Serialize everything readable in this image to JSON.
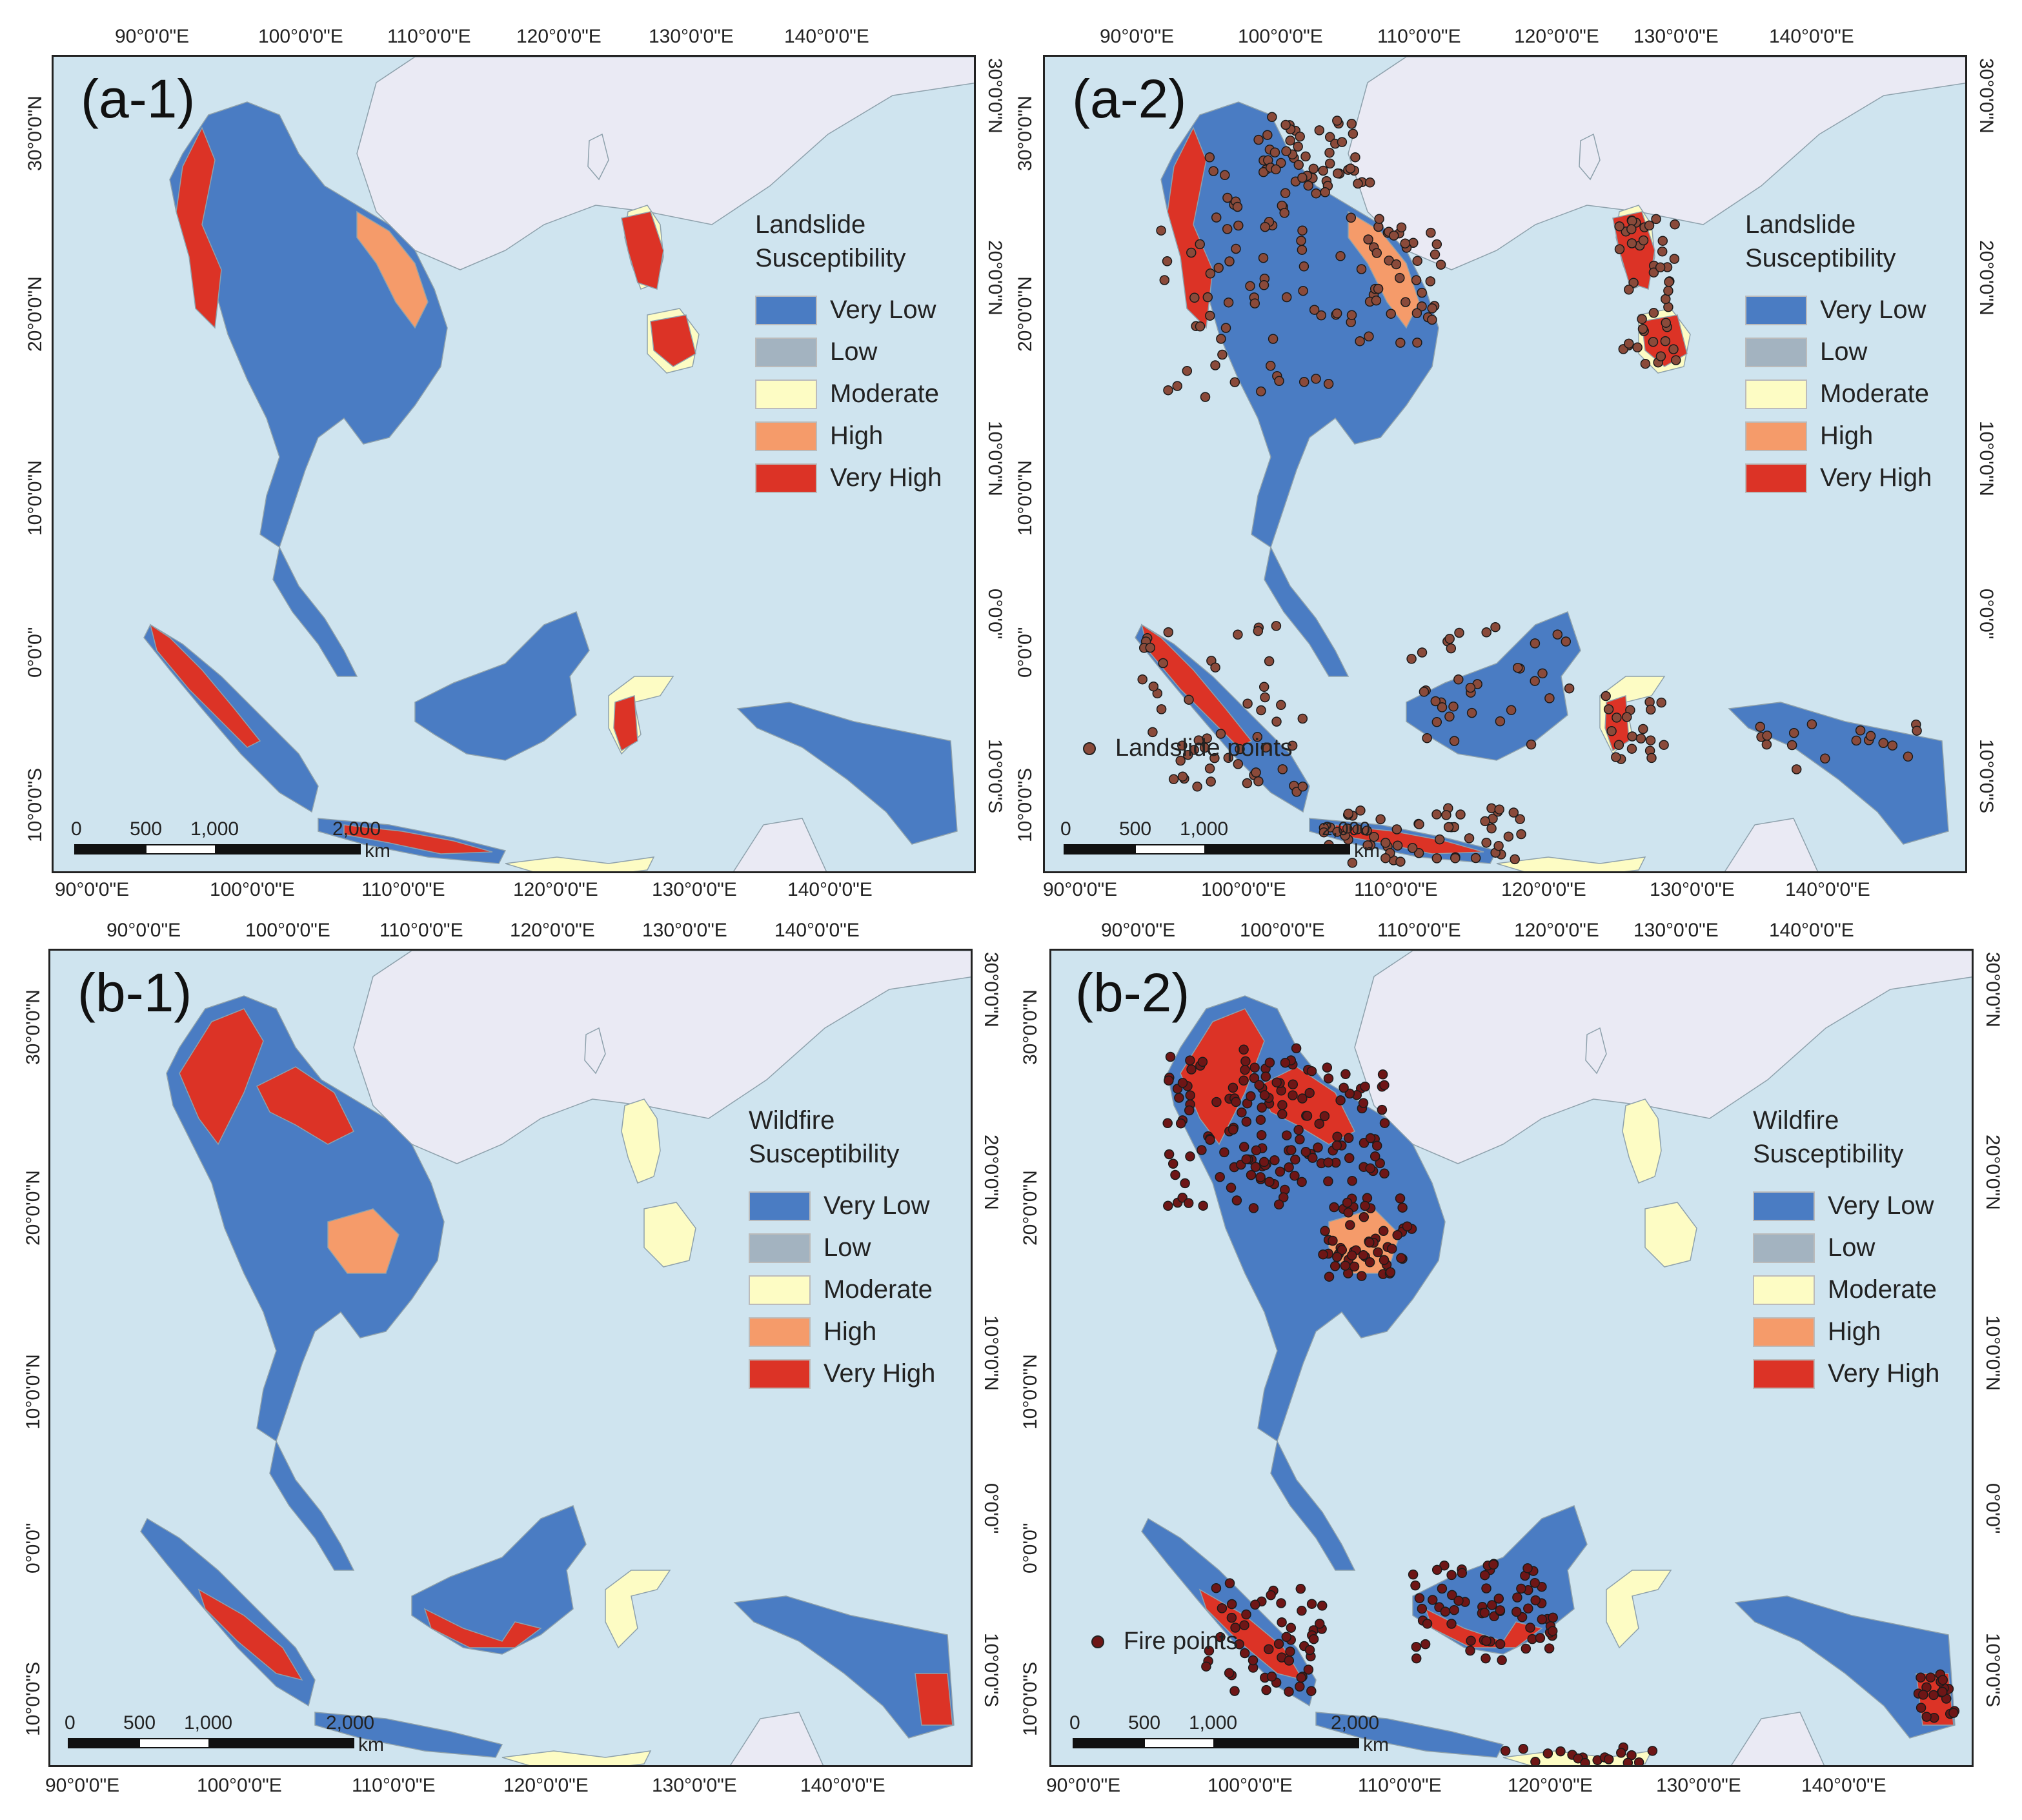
{
  "colors": {
    "sea": "#cfe4ef",
    "mainland": "#eaeaf4",
    "very_low": "#4a7cc3",
    "low": "#a3b3c0",
    "moderate": "#fdfcc4",
    "high": "#f59b6a",
    "very_high": "#dc3326",
    "landslide_point": "#8a4a3a",
    "fire_point": "#6e1616"
  },
  "panels": [
    {
      "id": "a-1",
      "label": "(a-1)",
      "legend": {
        "title_line1": "Landslide",
        "title_line2": "Susceptibility",
        "classes": [
          "Very Low",
          "Low",
          "Moderate",
          "High",
          "Very High"
        ]
      },
      "points_label": "",
      "points_kind": "none"
    },
    {
      "id": "a-2",
      "label": "(a-2)",
      "legend": {
        "title_line1": "Landslide",
        "title_line2": "Susceptibility",
        "classes": [
          "Very Low",
          "Low",
          "Moderate",
          "High",
          "Very High"
        ]
      },
      "points_label": "Landslide points",
      "points_kind": "landslide"
    },
    {
      "id": "b-1",
      "label": "(b-1)",
      "legend": {
        "title_line1": "Wildfire",
        "title_line2": "Susceptibility",
        "classes": [
          "Very Low",
          "Low",
          "Moderate",
          "High",
          "Very High"
        ]
      },
      "points_label": "",
      "points_kind": "none"
    },
    {
      "id": "b-2",
      "label": "(b-2)",
      "legend": {
        "title_line1": "Wildfire",
        "title_line2": "Susceptibility",
        "classes": [
          "Very Low",
          "Low",
          "Moderate",
          "High",
          "Very High"
        ]
      },
      "points_label": "Fire points",
      "points_kind": "fire"
    }
  ],
  "axes": {
    "lon_labels_top": [
      "90°0'0\"E",
      "100°0'0\"E",
      "110°0'0\"E",
      "120°0'0\"E",
      "130°0'0\"E",
      "140°0'0\"E"
    ],
    "lon_labels_bottom": [
      "90°0'0\"E",
      "100°0'0\"E",
      "110°0'0\"E",
      "120°0'0\"E",
      "130°0'0\"E",
      "140°0'0\"E"
    ],
    "lat_labels": [
      "30°0'0\"N",
      "20°0'0\"N",
      "10°0'0\"N",
      "0°0'0\"",
      "10°0'0\"S"
    ]
  },
  "scale_bar": {
    "ticks": [
      "0",
      "500",
      "1,000",
      "2,000"
    ],
    "unit": "km"
  }
}
